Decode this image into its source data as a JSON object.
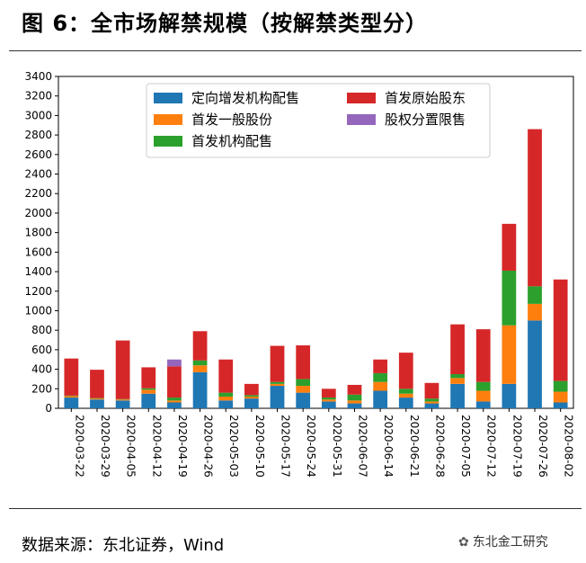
{
  "figure": {
    "title": "图 6：全市场解禁规模（按解禁类型分）",
    "source": "数据来源：东北证券，Wind",
    "watermark": "东北金工研究"
  },
  "chart_data": {
    "type": "bar",
    "stacked": true,
    "title": "",
    "xlabel": "",
    "ylabel": "",
    "ylim": [
      0,
      3400
    ],
    "yticks": [
      0,
      200,
      400,
      600,
      800,
      1000,
      1200,
      1400,
      1600,
      1800,
      2000,
      2200,
      2400,
      2600,
      2800,
      3000,
      3200,
      3400
    ],
    "grid": false,
    "legend_position": "top-center",
    "categories": [
      "2020-03-22",
      "2020-03-29",
      "2020-04-05",
      "2020-04-12",
      "2020-04-19",
      "2020-04-26",
      "2020-05-03",
      "2020-05-10",
      "2020-05-17",
      "2020-05-24",
      "2020-05-31",
      "2020-06-07",
      "2020-06-14",
      "2020-06-21",
      "2020-06-28",
      "2020-07-05",
      "2020-07-12",
      "2020-07-19",
      "2020-07-26",
      "2020-08-02"
    ],
    "series": [
      {
        "name": "定向增发机构配售",
        "color": "#1f77b4",
        "values": [
          110,
          90,
          80,
          150,
          60,
          370,
          80,
          100,
          230,
          160,
          70,
          50,
          180,
          110,
          50,
          250,
          70,
          250,
          900,
          60
        ]
      },
      {
        "name": "首发一般股份",
        "color": "#ff7f0e",
        "values": [
          15,
          10,
          10,
          40,
          20,
          70,
          40,
          20,
          20,
          70,
          20,
          30,
          90,
          40,
          20,
          60,
          110,
          600,
          170,
          110
        ]
      },
      {
        "name": "首发机构配售",
        "color": "#2ca02c",
        "values": [
          5,
          5,
          5,
          15,
          30,
          50,
          40,
          15,
          20,
          70,
          20,
          60,
          90,
          50,
          30,
          40,
          90,
          560,
          180,
          110
        ]
      },
      {
        "name": "首发原始股东",
        "color": "#d62728",
        "values": [
          380,
          290,
          600,
          215,
          320,
          300,
          340,
          115,
          370,
          345,
          90,
          100,
          140,
          370,
          160,
          510,
          540,
          480,
          1610,
          1040
        ]
      },
      {
        "name": "股权分置限售",
        "color": "#9467bd",
        "values": [
          0,
          0,
          0,
          0,
          70,
          0,
          0,
          0,
          0,
          0,
          0,
          0,
          0,
          0,
          0,
          0,
          0,
          0,
          0,
          0
        ]
      }
    ]
  }
}
